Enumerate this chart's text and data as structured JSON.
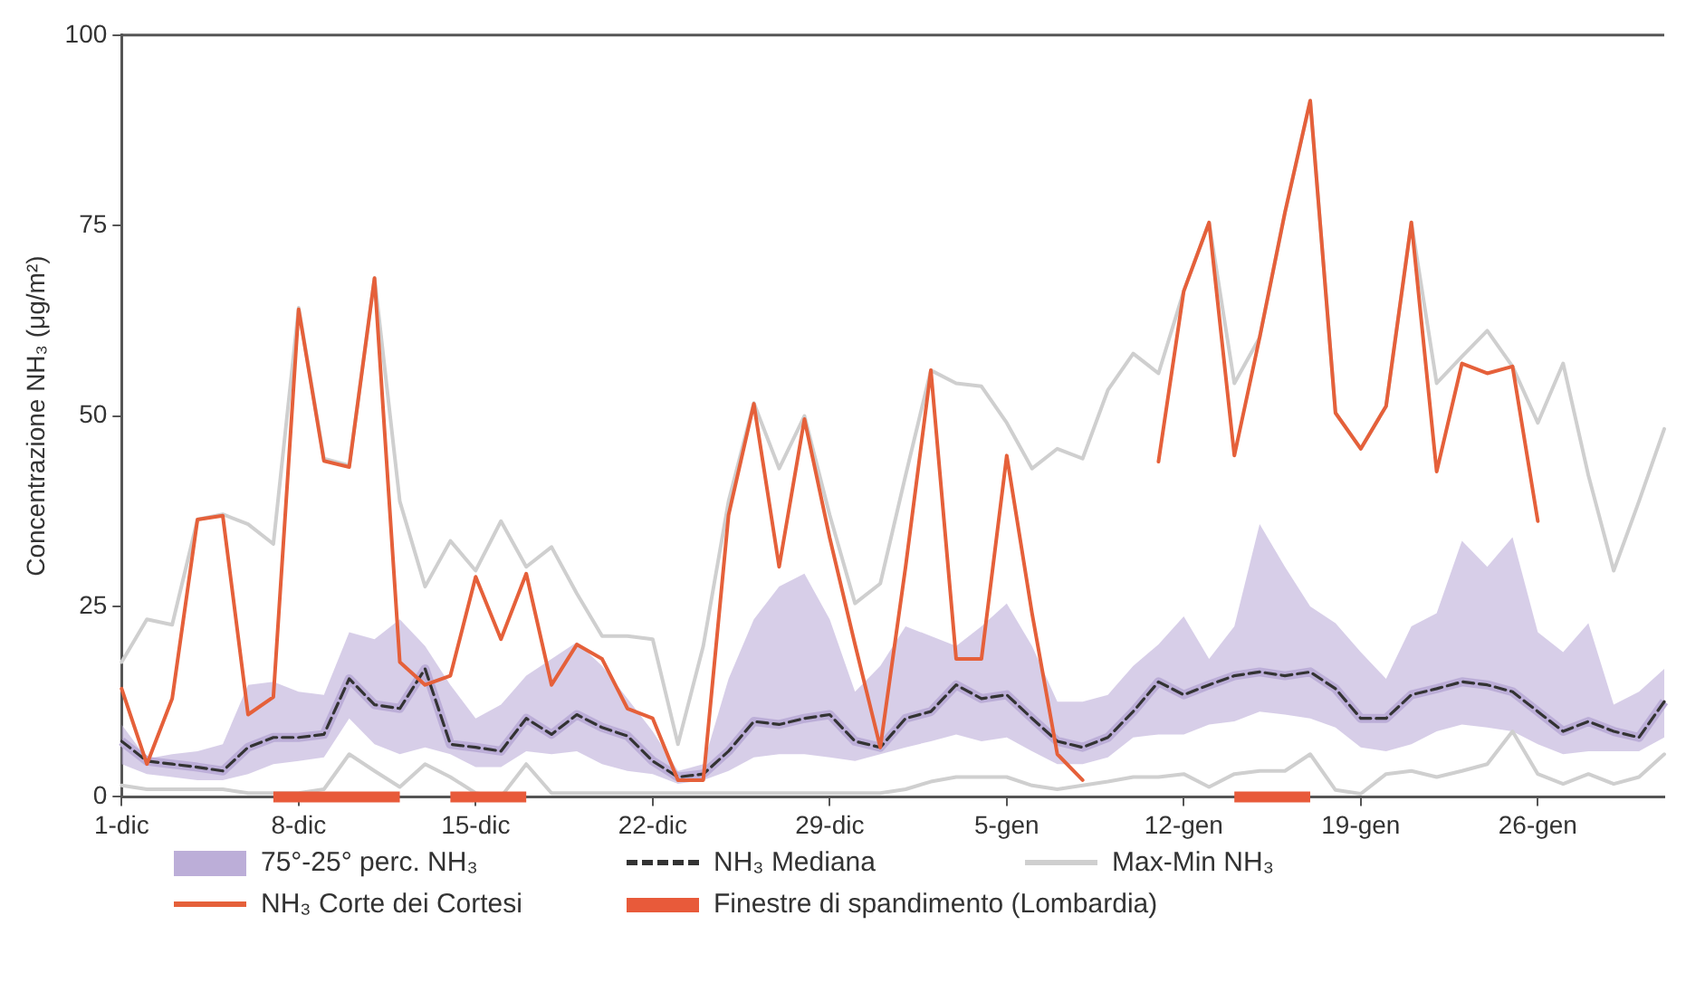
{
  "chart_data": {
    "type": "line",
    "ylabel": "Concentrazione NH₃ (μg/m²)",
    "categories": [
      "1-dic",
      null,
      null,
      null,
      null,
      null,
      null,
      "8-dic",
      null,
      null,
      null,
      null,
      null,
      null,
      "15-dic",
      null,
      null,
      null,
      null,
      null,
      null,
      "22-dic",
      null,
      null,
      null,
      null,
      null,
      null,
      "29-dic",
      null,
      null,
      null,
      null,
      null,
      null,
      "5-gen",
      null,
      null,
      null,
      null,
      null,
      null,
      "12-gen",
      null,
      null,
      null,
      null,
      null,
      null,
      "19-gen",
      null,
      null,
      null,
      null,
      null,
      null,
      "26-gen",
      null,
      null,
      null,
      null,
      null
    ],
    "ylim": [
      0,
      100
    ],
    "yticks": [
      0,
      25,
      50,
      75,
      100
    ],
    "marker": "none",
    "legend": "bottom",
    "series": [
      {
        "name": "75°-25° perc. NH₃",
        "color": "#bcaed8",
        "values": [
          7.3,
          4.7,
          4.3,
          3.9,
          3.4,
          6.5,
          7.8,
          7.8,
          8.2,
          15.5,
          12.1,
          11.6,
          16.8,
          6.9,
          6.5,
          6,
          10.3,
          8.2,
          10.8,
          9.1,
          8,
          4.7,
          2.6,
          3,
          6,
          9.9,
          9.5,
          10.3,
          10.8,
          7.3,
          6.5,
          10.3,
          11.2,
          14.7,
          12.9,
          13.4,
          10.3,
          7.3,
          6.5,
          7.8,
          11.2,
          15.1,
          13.4,
          14.7,
          15.9,
          16.4,
          15.9,
          16.4,
          14.2,
          10.3,
          10.3,
          13.4,
          14.2,
          15.1,
          14.7,
          13.8,
          11.2,
          8.6,
          9.9,
          8.6,
          7.8,
          12.5
        ],
        "lower": [
          4.3,
          3,
          2.6,
          2.2,
          2.2,
          3,
          4.3,
          4.7,
          5.2,
          10.3,
          6.9,
          5.6,
          6.5,
          5.6,
          3.9,
          3.9,
          6,
          5.6,
          6,
          4.3,
          3.4,
          3,
          1.7,
          2.2,
          3.4,
          5.2,
          5.6,
          5.6,
          5.2,
          4.7,
          5.6,
          6.5,
          7.3,
          8.2,
          7.3,
          7.8,
          6,
          4.3,
          4.3,
          5.2,
          7.8,
          8.2,
          8.2,
          9.5,
          9.9,
          11.2,
          10.8,
          10.3,
          9.1,
          6.5,
          6,
          6.9,
          8.6,
          9.5,
          9.1,
          8.6,
          6.9,
          5.6,
          6,
          6,
          6,
          7.8
        ],
        "upper": [
          9.5,
          5,
          5.6,
          6,
          6.9,
          14.7,
          15.1,
          13.8,
          13.4,
          21.6,
          20.7,
          23.3,
          19.8,
          14.7,
          10.3,
          12.1,
          15.9,
          18.1,
          20.3,
          17.2,
          12.9,
          8.6,
          3.4,
          4.3,
          15.5,
          23.3,
          27.6,
          29.3,
          23.3,
          13.8,
          17.2,
          22.4,
          21.1,
          19.8,
          22.4,
          25.4,
          19.8,
          12.5,
          12.5,
          13.4,
          17.2,
          20,
          23.7,
          18.1,
          22.4,
          35.8,
          30.2,
          25,
          22.8,
          19,
          15.5,
          22.4,
          24.1,
          33.6,
          30.2,
          34.1,
          21.6,
          19,
          22.8,
          12.1,
          13.8,
          16.8
        ]
      },
      {
        "name": "NH₃ Mediana",
        "color": "#333333",
        "line_style": "dashed",
        "values": [
          7.3,
          4.7,
          4.3,
          3.9,
          3.4,
          6.5,
          7.8,
          7.8,
          8.2,
          15.5,
          12.1,
          11.6,
          16.8,
          6.9,
          6.5,
          6,
          10.3,
          8.2,
          10.8,
          9.1,
          8,
          4.7,
          2.6,
          3,
          6,
          9.9,
          9.5,
          10.3,
          10.8,
          7.3,
          6.5,
          10.3,
          11.2,
          14.7,
          12.9,
          13.4,
          10.3,
          7.3,
          6.5,
          7.8,
          11.2,
          15.1,
          13.4,
          14.7,
          15.9,
          16.4,
          15.9,
          16.4,
          14.2,
          10.3,
          10.3,
          13.4,
          14.2,
          15.1,
          14.7,
          13.8,
          11.2,
          8.6,
          9.9,
          8.6,
          7.8,
          12.5
        ]
      },
      {
        "name": "Max-Min NH₃",
        "color": "#cfcfcf",
        "values": [
          17.7,
          23.3,
          22.6,
          36.4,
          37.1,
          35.8,
          33.2,
          64.2,
          44.4,
          43.5,
          68.1,
          38.8,
          27.6,
          33.6,
          29.7,
          36.2,
          30.2,
          32.8,
          26.7,
          21.1,
          21.1,
          20.7,
          6.9,
          19.8,
          38.8,
          51.7,
          43.1,
          50,
          37,
          25.4,
          28,
          42.2,
          56,
          54.3,
          53.9,
          49.1,
          43.1,
          45.7,
          44.4,
          53.4,
          58.2,
          55.6,
          66.4,
          75.4,
          54.3,
          60.3,
          76.7,
          91.4,
          50.4,
          45.7,
          51.3,
          75.4,
          54.3,
          57.8,
          61.2,
          56.5,
          49.1,
          56.9,
          42.2,
          29.7,
          38.8,
          48.3
        ]
      },
      {
        "color": "#cfcfcf",
        "values": [
          1.5,
          1,
          1,
          1,
          1,
          0.5,
          0.5,
          0.5,
          1,
          5.6,
          3.4,
          1.3,
          4.3,
          2.6,
          0.5,
          0,
          4.3,
          0.5,
          0.5,
          0.5,
          0.5,
          0.5,
          0.5,
          0.5,
          0.5,
          0.5,
          0.5,
          0.5,
          0.5,
          0.5,
          0.5,
          1,
          2,
          2.6,
          2.6,
          2.6,
          1.5,
          1,
          1.5,
          2,
          2.6,
          2.6,
          3,
          1.3,
          3,
          3.4,
          3.4,
          5.6,
          0.9,
          0.4,
          3,
          3.4,
          2.6,
          3.4,
          4.3,
          8.6,
          3,
          1.7,
          3,
          1.7,
          2.6,
          5.6
        ]
      },
      {
        "name": "NH₃ Corte dei Cortesi",
        "color": "#e5603a",
        "values": [
          14.2,
          4.3,
          12.9,
          36.4,
          36.9,
          10.8,
          13.1,
          64,
          44.1,
          43.3,
          68.1,
          17.7,
          14.7,
          15.9,
          28.9,
          20.7,
          29.3,
          14.7,
          20,
          18.1,
          11.6,
          10.3,
          2.2,
          2.2,
          37,
          51.6,
          30.2,
          49.6,
          34,
          20,
          6.5,
          30.2,
          56,
          18.1,
          18.1,
          44.8,
          24.1,
          5.6,
          2.2,
          null,
          null,
          44,
          66.4,
          75.4,
          44.8,
          60.3,
          76.7,
          91.4,
          50.4,
          45.7,
          51.3,
          75.4,
          42.7,
          56.9,
          55.6,
          56.5,
          36.2,
          null,
          null,
          null,
          null,
          null
        ]
      },
      {
        "name": "Finestre di spandimento (Lombardia)",
        "color": "#e85a3a",
        "values": [
          null,
          null,
          null,
          null,
          null,
          null,
          0,
          0,
          0,
          0,
          0,
          0,
          null,
          0,
          0,
          0,
          0,
          null,
          null,
          null,
          null,
          null,
          null,
          null,
          null,
          null,
          null,
          null,
          null,
          null,
          null,
          null,
          null,
          null,
          null,
          null,
          null,
          null,
          null,
          null,
          null,
          null,
          null,
          null,
          0,
          0,
          0,
          0,
          null,
          null,
          null,
          null,
          null,
          null,
          null,
          null,
          null,
          null,
          null,
          null,
          null,
          null
        ]
      }
    ]
  }
}
